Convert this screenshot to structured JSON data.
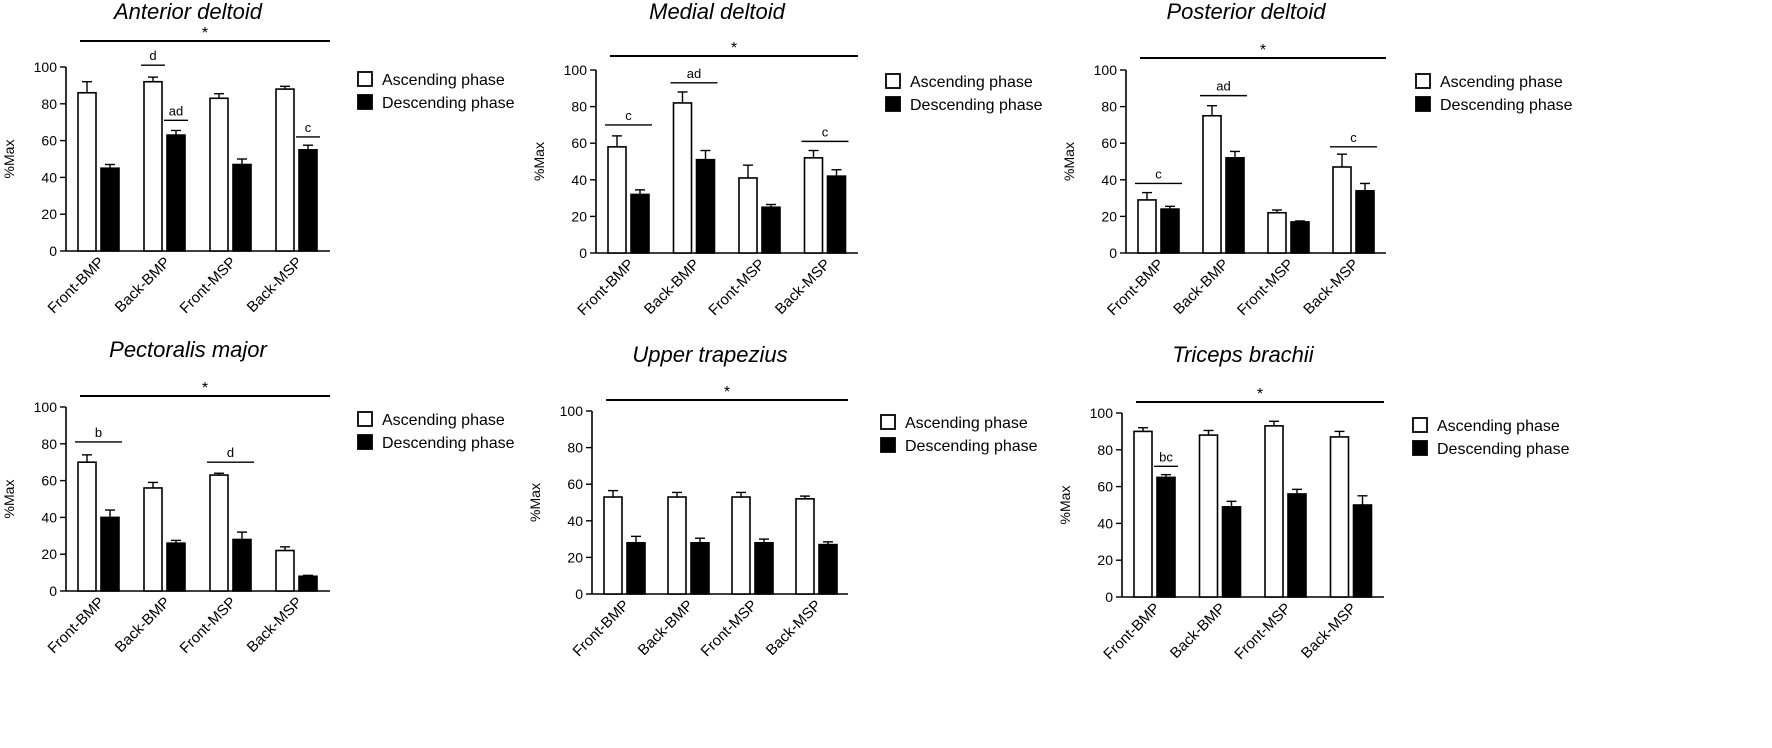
{
  "chart_data": [
    {
      "type": "bar",
      "title": "Anterior deltoid",
      "ylabel": "%Max",
      "ylim": [
        0,
        100
      ],
      "yticks": [
        0,
        20,
        40,
        60,
        80,
        100
      ],
      "categories": [
        "Front-BMP",
        "Back-BMP",
        "Front-MSP",
        "Back-MSP"
      ],
      "series": [
        {
          "name": "Ascending phase",
          "values": [
            86,
            92,
            83,
            88
          ],
          "errors": [
            6,
            2.5,
            2.5,
            1.5
          ],
          "color": "#ffffff"
        },
        {
          "name": "Descending phase",
          "values": [
            45,
            63,
            47,
            55
          ],
          "errors": [
            2,
            2.5,
            3,
            2.5
          ],
          "color": "#000000"
        }
      ],
      "significance_line": "*",
      "annotations": [
        {
          "label": "d",
          "from": [
            1,
            0
          ],
          "to": [
            1,
            0
          ],
          "y": 101
        },
        {
          "label": "ad",
          "from": [
            1,
            1
          ],
          "to": [
            1,
            1
          ],
          "y": 71
        },
        {
          "label": "c",
          "from": [
            3,
            1
          ],
          "to": [
            3,
            1
          ],
          "y": 62
        }
      ]
    },
    {
      "type": "bar",
      "title": "Medial deltoid",
      "ylabel": "%Max",
      "ylim": [
        0,
        100
      ],
      "yticks": [
        0,
        20,
        40,
        60,
        80,
        100
      ],
      "categories": [
        "Front-BMP",
        "Back-BMP",
        "Front-MSP",
        "Back-MSP"
      ],
      "series": [
        {
          "name": "Ascending phase",
          "values": [
            58,
            82,
            41,
            52
          ],
          "errors": [
            6,
            6,
            7,
            4
          ],
          "color": "#ffffff"
        },
        {
          "name": "Descending phase",
          "values": [
            32,
            51,
            25,
            42
          ],
          "errors": [
            2.5,
            5,
            1.5,
            3.5
          ],
          "color": "#000000"
        }
      ],
      "significance_line": "*",
      "annotations": [
        {
          "label": "c",
          "from": [
            0,
            0
          ],
          "to": [
            0,
            1
          ],
          "y": 70
        },
        {
          "label": "ad",
          "from": [
            1,
            0
          ],
          "to": [
            1,
            1
          ],
          "y": 93
        },
        {
          "label": "c",
          "from": [
            3,
            0
          ],
          "to": [
            3,
            1
          ],
          "y": 61
        }
      ]
    },
    {
      "type": "bar",
      "title": "Posterior deltoid",
      "ylabel": "%Max",
      "ylim": [
        0,
        100
      ],
      "yticks": [
        0,
        20,
        40,
        60,
        80,
        100
      ],
      "categories": [
        "Front-BMP",
        "Back-BMP",
        "Front-MSP",
        "Back-MSP"
      ],
      "series": [
        {
          "name": "Ascending phase",
          "values": [
            29,
            75,
            22,
            47
          ],
          "errors": [
            4,
            5.5,
            1.5,
            7
          ],
          "color": "#ffffff"
        },
        {
          "name": "Descending phase",
          "values": [
            24,
            52,
            17,
            34
          ],
          "errors": [
            1.5,
            3.5,
            0.5,
            4
          ],
          "color": "#000000"
        }
      ],
      "significance_line": "*",
      "annotations": [
        {
          "label": "c",
          "from": [
            0,
            0
          ],
          "to": [
            0,
            1
          ],
          "y": 38
        },
        {
          "label": "ad",
          "from": [
            1,
            0
          ],
          "to": [
            1,
            1
          ],
          "y": 86
        },
        {
          "label": "c",
          "from": [
            3,
            0
          ],
          "to": [
            3,
            1
          ],
          "y": 58
        }
      ]
    },
    {
      "type": "bar",
      "title": "Pectoralis major",
      "ylabel": "%Max",
      "ylim": [
        0,
        100
      ],
      "yticks": [
        0,
        20,
        40,
        60,
        80,
        100
      ],
      "categories": [
        "Front-BMP",
        "Back-BMP",
        "Front-MSP",
        "Back-MSP"
      ],
      "series": [
        {
          "name": "Ascending phase",
          "values": [
            70,
            56,
            63,
            22
          ],
          "errors": [
            4,
            3,
            1,
            2
          ],
          "color": "#ffffff"
        },
        {
          "name": "Descending phase",
          "values": [
            40,
            26,
            28,
            8
          ],
          "errors": [
            4,
            1.5,
            4,
            0.5
          ],
          "color": "#000000"
        }
      ],
      "significance_line": "*",
      "annotations": [
        {
          "label": "b",
          "from": [
            0,
            0
          ],
          "to": [
            0,
            1
          ],
          "y": 81
        },
        {
          "label": "d",
          "from": [
            2,
            0
          ],
          "to": [
            2,
            1
          ],
          "y": 70
        }
      ]
    },
    {
      "type": "bar",
      "title": "Upper trapezius",
      "ylabel": "%Max",
      "ylim": [
        0,
        100
      ],
      "yticks": [
        0,
        20,
        40,
        60,
        80,
        100
      ],
      "categories": [
        "Front-BMP",
        "Back-BMP",
        "Front-MSP",
        "Back-MSP"
      ],
      "series": [
        {
          "name": "Ascending phase",
          "values": [
            53,
            53,
            53,
            52
          ],
          "errors": [
            3.5,
            2.5,
            2.5,
            1.5
          ],
          "color": "#ffffff"
        },
        {
          "name": "Descending phase",
          "values": [
            28,
            28,
            28,
            27
          ],
          "errors": [
            3.5,
            2.5,
            2,
            1.5
          ],
          "color": "#000000"
        }
      ],
      "significance_line": "*",
      "annotations": []
    },
    {
      "type": "bar",
      "title": "Triceps brachii",
      "ylabel": "%Max",
      "ylim": [
        0,
        100
      ],
      "yticks": [
        0,
        20,
        40,
        60,
        80,
        100
      ],
      "categories": [
        "Front-BMP",
        "Back-BMP",
        "Front-MSP",
        "Back-MSP"
      ],
      "series": [
        {
          "name": "Ascending phase",
          "values": [
            90,
            88,
            93,
            87
          ],
          "errors": [
            2,
            2.5,
            2.5,
            3
          ],
          "color": "#ffffff"
        },
        {
          "name": "Descending phase",
          "values": [
            65,
            49,
            56,
            50
          ],
          "errors": [
            1.5,
            3,
            2.5,
            5
          ],
          "color": "#000000"
        }
      ],
      "significance_line": "*",
      "annotations": [
        {
          "label": "bc",
          "from": [
            0,
            1
          ],
          "to": [
            0,
            1
          ],
          "y": 71
        }
      ]
    }
  ]
}
